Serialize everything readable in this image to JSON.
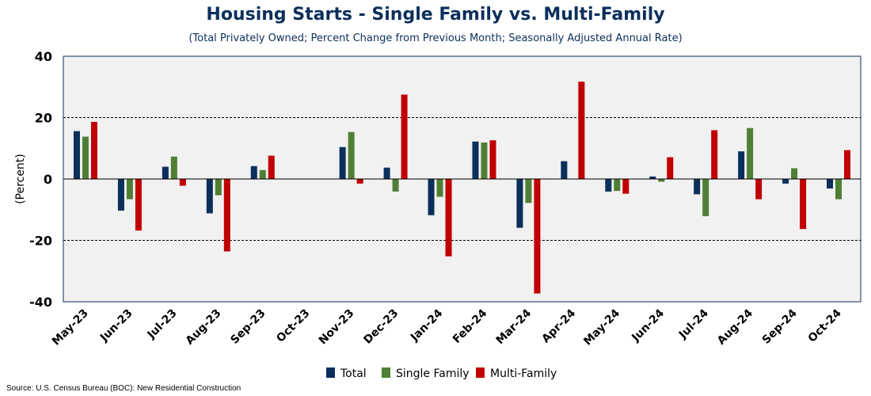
{
  "header": {
    "title": "Housing Starts - Single Family vs. Multi-Family",
    "subtitle": "(Total Privately Owned; Percent Change from Previous Month; Seasonally Adjusted Annual Rate)"
  },
  "footer": {
    "source": "Source: U.S. Census Bureau (BOC): New Residential Construction"
  },
  "chart_data": {
    "type": "bar",
    "ylabel": "(Percent)",
    "ylim": [
      -40,
      40
    ],
    "yticks": [
      -40,
      -20,
      0,
      20,
      40
    ],
    "categories": [
      "May-23",
      "Jun-23",
      "Jul-23",
      "Aug-23",
      "Sep-23",
      "Oct-23",
      "Nov-23",
      "Dec-23",
      "Jan-24",
      "Feb-24",
      "Mar-24",
      "Apr-24",
      "May-24",
      "Jun-24",
      "Jul-24",
      "Aug-24",
      "Sep-24",
      "Oct-24"
    ],
    "series": [
      {
        "name": "Total",
        "color": "#0b2f5b",
        "values": [
          15.6,
          -10.3,
          4.0,
          -11.2,
          4.2,
          0.0,
          10.4,
          3.7,
          -11.8,
          12.2,
          -15.9,
          5.8,
          -4.1,
          0.8,
          -5.0,
          9.0,
          -1.5,
          -3.1
        ]
      },
      {
        "name": "Single Family",
        "color": "#4f7f35",
        "values": [
          13.8,
          -6.6,
          7.3,
          -5.3,
          2.9,
          0.0,
          15.3,
          -4.1,
          -5.8,
          11.9,
          -7.8,
          0.0,
          -3.9,
          -0.9,
          -12.1,
          16.6,
          3.5,
          -6.6
        ]
      },
      {
        "name": "Multi-Family",
        "color": "#c00000",
        "values": [
          18.6,
          -16.8,
          -2.2,
          -23.6,
          7.6,
          0.0,
          -1.5,
          27.5,
          -25.2,
          12.6,
          -37.3,
          31.7,
          -4.8,
          7.1,
          15.9,
          -6.6,
          -16.3,
          9.4
        ]
      }
    ],
    "grid": "dashed horizontal",
    "legend": "bottom-center",
    "background": "#f1f1f1",
    "frame_color": "#0b2f5b"
  }
}
